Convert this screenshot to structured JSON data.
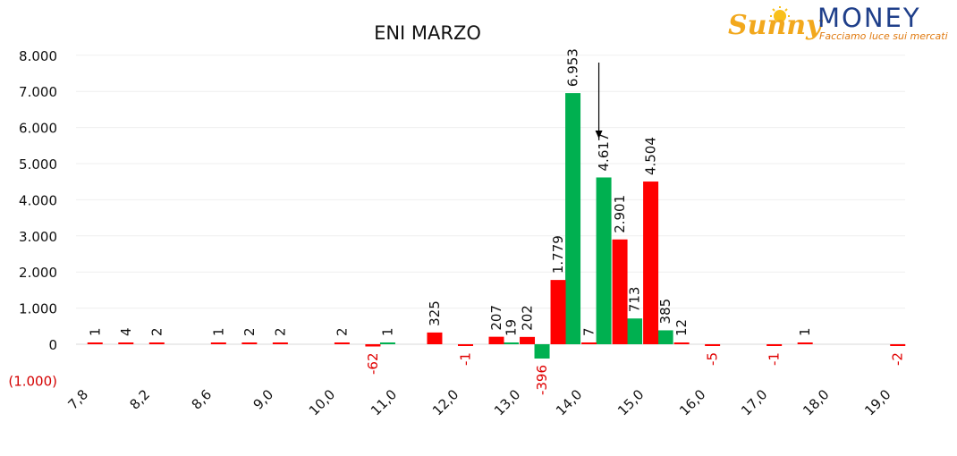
{
  "logo": {
    "brand_sunny": "Sunny",
    "brand_money": "MONEY",
    "tagline": "Facciamo luce sui mercati",
    "colors": {
      "sunny": "#f2a81d",
      "money": "#1f3f8a",
      "tagline": "#e07a10"
    }
  },
  "chart_data": {
    "type": "bar",
    "title": "ENI MARZO",
    "xlabel": "",
    "ylabel": "",
    "ylim": [
      -1000,
      8000
    ],
    "y_ticks": [
      "8.000",
      "7.000",
      "6.000",
      "5.000",
      "4.000",
      "3.000",
      "2.000",
      "1.000",
      "0",
      "(1.000)"
    ],
    "y_tick_values": [
      8000,
      7000,
      6000,
      5000,
      4000,
      3000,
      2000,
      1000,
      0,
      -1000
    ],
    "x_ticks": [
      "7,8",
      "8,2",
      "8,6",
      "9,0",
      "10,0",
      "11,0",
      "12,0",
      "13,0",
      "14,0",
      "15,0",
      "16,0",
      "17,0",
      "18,0",
      "19,0"
    ],
    "categories": [
      "7,8",
      "8,0",
      "8,2",
      "8,4",
      "8,6",
      "8,8",
      "9,0",
      "9,5",
      "10,0",
      "10,5",
      "11,0",
      "11,5",
      "12,0",
      "12,5",
      "13,0",
      "13,5",
      "14,0",
      "14,5",
      "15,0",
      "15,5",
      "16,0",
      "16,5",
      "17,0",
      "17,5",
      "18,0",
      "18,5",
      "19,0"
    ],
    "grid": true,
    "legend": "none",
    "colors": {
      "green": "#00b050",
      "red": "#ff0000"
    },
    "series": [
      {
        "color": "green",
        "values": [
          null,
          null,
          null,
          null,
          null,
          null,
          null,
          null,
          null,
          null,
          1,
          null,
          null,
          null,
          19,
          -396,
          6953,
          4617,
          713,
          385,
          null,
          null,
          null,
          null,
          null,
          null,
          null
        ]
      },
      {
        "color": "red",
        "values": [
          1,
          4,
          2,
          null,
          1,
          2,
          2,
          null,
          2,
          -62,
          null,
          325,
          -1,
          207,
          202,
          1779,
          7,
          2901,
          4504,
          12,
          -5,
          null,
          -1,
          1,
          null,
          null,
          -2
        ]
      }
    ],
    "data_labels": {
      "green": [
        null,
        null,
        null,
        null,
        null,
        null,
        null,
        null,
        null,
        null,
        "1",
        null,
        null,
        null,
        "19",
        "-396",
        "6.953",
        "4.617",
        "713",
        "385",
        null,
        null,
        null,
        null,
        null,
        null,
        null
      ],
      "red": [
        "1",
        "4",
        "2",
        null,
        "1",
        "2",
        "2",
        null,
        "2",
        "-62",
        null,
        "325",
        "-1",
        "207",
        "202",
        "1.779",
        "7",
        "2.901",
        "4.504",
        "12",
        "-5",
        null,
        "-1",
        "1",
        null,
        null,
        "-2"
      ]
    },
    "annotations": [
      {
        "type": "arrow",
        "direction": "down",
        "x_category": "14,0"
      }
    ]
  }
}
